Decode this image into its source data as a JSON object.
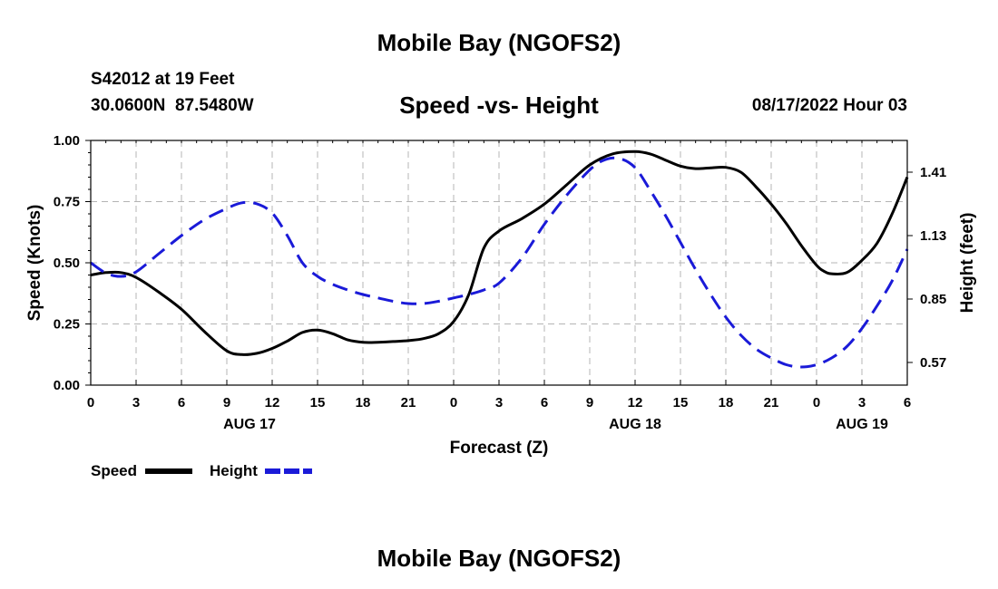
{
  "header": {
    "title": "Mobile Bay (NGOFS2)",
    "station_line": "S42012 at 19 Feet",
    "coords_line": "30.0600N  87.5480W",
    "timestamp": "08/17/2022 Hour 03"
  },
  "footer": {
    "repeat_title": "Mobile Bay (NGOFS2)"
  },
  "colors": {
    "speed": "#000000",
    "height": "#1a1ad8",
    "grid": "#b4b4b4"
  },
  "chart_data": {
    "type": "line",
    "title": "Speed -vs- Height",
    "xlabel": "Forecast (Z)",
    "ylabel": "Speed (Knots)",
    "y2label": "Height (feet)",
    "x_unit": "hours since 08/17/2022 00Z",
    "xlim": [
      0,
      54
    ],
    "x_ticks": [
      0,
      3,
      6,
      9,
      12,
      15,
      18,
      21,
      24,
      27,
      30,
      33,
      36,
      39,
      42,
      45,
      48,
      51,
      54
    ],
    "x_tick_labels": [
      "0",
      "3",
      "6",
      "9",
      "12",
      "15",
      "18",
      "21",
      "0",
      "3",
      "6",
      "9",
      "12",
      "15",
      "18",
      "21",
      "0",
      "3",
      "6"
    ],
    "date_labels": [
      {
        "x": 10.5,
        "text": "AUG 17"
      },
      {
        "x": 36,
        "text": "AUG 18"
      },
      {
        "x": 51,
        "text": "AUG 19"
      }
    ],
    "ylim": [
      0,
      1
    ],
    "y_ticks": [
      0,
      0.25,
      0.5,
      0.75,
      1
    ],
    "y_tick_labels": [
      "0.00",
      "0.25",
      "0.50",
      "0.75",
      "1.00"
    ],
    "y2lim": [
      0.47,
      1.55
    ],
    "y2_ticks": [
      0.57,
      0.85,
      1.13,
      1.41
    ],
    "y2_tick_labels": [
      "0.57",
      "0.85",
      "1.13",
      "1.41"
    ],
    "grid": true,
    "legend_position": "bottom-left",
    "series": [
      {
        "name": "Speed",
        "axis": "left",
        "style": "solid",
        "color": "#000000",
        "x": [
          0,
          1,
          2,
          3,
          4.5,
          6,
          7.5,
          9,
          10,
          11,
          12,
          13,
          14,
          15,
          16,
          17,
          18,
          19,
          20,
          21,
          22,
          23,
          24,
          25,
          26,
          27,
          28.5,
          30,
          31.5,
          33,
          34.5,
          36,
          37,
          38,
          39,
          40,
          41,
          42,
          43,
          44,
          45,
          46,
          47,
          48,
          48.5,
          49,
          50,
          51,
          52,
          53,
          54
        ],
        "values": [
          0.45,
          0.46,
          0.46,
          0.44,
          0.38,
          0.31,
          0.22,
          0.14,
          0.125,
          0.13,
          0.15,
          0.18,
          0.215,
          0.225,
          0.21,
          0.185,
          0.175,
          0.175,
          0.178,
          0.182,
          0.19,
          0.21,
          0.26,
          0.37,
          0.56,
          0.63,
          0.68,
          0.74,
          0.82,
          0.9,
          0.945,
          0.955,
          0.945,
          0.92,
          0.895,
          0.885,
          0.888,
          0.89,
          0.87,
          0.81,
          0.74,
          0.66,
          0.57,
          0.49,
          0.465,
          0.455,
          0.46,
          0.51,
          0.58,
          0.7,
          0.85
        ]
      },
      {
        "name": "Height",
        "axis": "right",
        "style": "dashed",
        "color": "#1a1ad8",
        "x": [
          0,
          1,
          2,
          3,
          4.5,
          6,
          7.5,
          9,
          10,
          11,
          12,
          13,
          14,
          15,
          16,
          17,
          18,
          19,
          20,
          21,
          22,
          23,
          24,
          25,
          26,
          27,
          28.5,
          30,
          31.5,
          33,
          34,
          35,
          36,
          37,
          38,
          39,
          40,
          41,
          42,
          43,
          44,
          45,
          46,
          47,
          48,
          49,
          50,
          51,
          52,
          53,
          54
        ],
        "values": [
          1.01,
          0.965,
          0.95,
          0.97,
          1.05,
          1.13,
          1.2,
          1.25,
          1.275,
          1.27,
          1.23,
          1.13,
          1.01,
          0.95,
          0.915,
          0.89,
          0.87,
          0.855,
          0.84,
          0.83,
          0.83,
          0.84,
          0.855,
          0.87,
          0.89,
          0.92,
          1.03,
          1.18,
          1.31,
          1.42,
          1.465,
          1.47,
          1.43,
          1.33,
          1.22,
          1.1,
          0.98,
          0.87,
          0.77,
          0.69,
          0.63,
          0.59,
          0.56,
          0.55,
          0.56,
          0.59,
          0.64,
          0.72,
          0.82,
          0.93,
          1.07
        ]
      }
    ]
  }
}
